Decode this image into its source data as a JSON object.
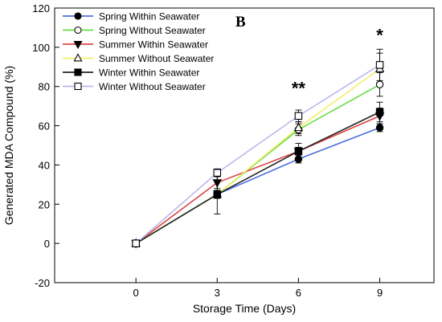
{
  "chart_data": {
    "type": "line",
    "panel_label": "B",
    "xlabel": "Storage Time (Days)",
    "ylabel": "Generated MDA Compound (%)",
    "x": [
      0,
      3,
      6,
      9
    ],
    "xticks": [
      "0",
      "3",
      "6",
      "9"
    ],
    "xlim": [
      -3,
      11
    ],
    "ylim": [
      -20,
      120
    ],
    "yticks": [
      -20,
      0,
      20,
      40,
      60,
      80,
      100,
      120
    ],
    "grid": false,
    "legend_position": "top-left",
    "series": [
      {
        "name": "Spring Within Seawater",
        "values": [
          0,
          25,
          43,
          59
        ],
        "errors": [
          0,
          2,
          2,
          2
        ],
        "color": "#4a6fe0",
        "marker": "circle-filled"
      },
      {
        "name": "Spring Without Seawater",
        "values": [
          0,
          25,
          58,
          81
        ],
        "errors": [
          0,
          2,
          3,
          6
        ],
        "color": "#66dd44",
        "marker": "circle-open"
      },
      {
        "name": "Summer Within Seawater",
        "values": [
          0,
          31,
          47,
          65
        ],
        "errors": [
          0,
          3,
          2,
          4
        ],
        "color": "#dd4444",
        "marker": "triangle-down-filled"
      },
      {
        "name": "Summer Without Seawater",
        "values": [
          0,
          25,
          59,
          89
        ],
        "errors": [
          0,
          2,
          3,
          8
        ],
        "color": "#f2ef6c",
        "marker": "triangle-up-open"
      },
      {
        "name": "Winter Within Seawater",
        "values": [
          0,
          25,
          47,
          67
        ],
        "errors": [
          0,
          10,
          4,
          5
        ],
        "color": "#222222",
        "marker": "square-filled"
      },
      {
        "name": "Winter Without Seawater",
        "values": [
          0,
          36,
          65,
          91
        ],
        "errors": [
          0,
          2,
          3,
          8
        ],
        "color": "#bbb7ee",
        "marker": "square-open"
      }
    ],
    "annotations": [
      {
        "text": "**",
        "x": 6,
        "y": 76
      },
      {
        "text": "*",
        "x": 9,
        "y": 103
      }
    ]
  }
}
